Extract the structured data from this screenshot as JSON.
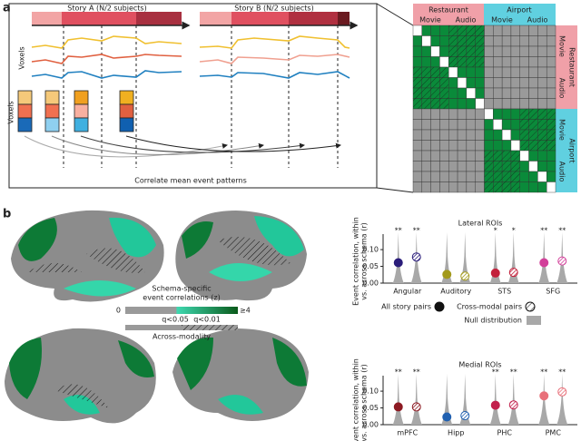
{
  "panel_a": {
    "label": "a",
    "story_a": "Story A (N/2 subjects)",
    "story_b": "Story B (N/2 subjects)",
    "voxels_1": "Voxels",
    "voxels_2": "Voxels",
    "caption": "Correlate mean event patterns"
  },
  "matrix": {
    "top_groups": [
      "Restaurant",
      "Airport"
    ],
    "top_modalities": [
      "Movie",
      "Audio",
      "Movie",
      "Audio"
    ],
    "side_groups": [
      "Restaurant",
      "Airport"
    ],
    "side_modalities": [
      "Movie",
      "Audio",
      "Movie",
      "Audio"
    ]
  },
  "panel_b": {
    "label": "b",
    "colorbar_title": [
      "Schema-specific",
      "event correlations (z)"
    ],
    "colorbar_min": "0",
    "colorbar_max": "≥4",
    "q_low": "q<0.05",
    "q_high": "q<0.01",
    "hatch_label": "Across-modality"
  },
  "chart_data": [
    {
      "type": "dot",
      "title": "Lateral ROIs",
      "ylabel": [
        "Event correlation, within",
        "vs. across schema (r)"
      ],
      "categories": [
        "Angular",
        "Auditory",
        "STS",
        "SFG"
      ],
      "colors": [
        "#2b1d7a",
        "#a39a1c",
        "#c3213c",
        "#d2409a"
      ],
      "series": [
        {
          "name": "All story pairs",
          "hatch": false,
          "values": [
            0.061,
            0.026,
            0.03,
            0.061
          ],
          "significance": [
            "**",
            null,
            "*",
            "**"
          ]
        },
        {
          "name": "Cross-modal pairs",
          "hatch": true,
          "values": [
            0.078,
            0.021,
            0.032,
            0.066
          ],
          "significance": [
            "**",
            null,
            "*",
            "**"
          ]
        }
      ],
      "null_label": "Null distribution",
      "legend": true,
      "ylim": [
        0,
        0.13
      ],
      "yticks": [
        {
          "value": 0,
          "label": "0.00"
        },
        {
          "value": 0.05,
          "label": "0.05"
        },
        {
          "value": 0.1,
          "label": "0.10"
        }
      ]
    },
    {
      "type": "dot",
      "title": "Medial ROIs",
      "ylabel": [
        "Event correlation, within",
        "vs. across schema (r)"
      ],
      "categories": [
        "mPFC",
        "Hipp",
        "PHC",
        "PMC"
      ],
      "colors": [
        "#8c1a22",
        "#2060b0",
        "#c2204c",
        "#e8707a"
      ],
      "series": [
        {
          "hatch": false,
          "values": [
            0.053,
            0.023,
            0.058,
            0.086
          ],
          "significance": [
            "**",
            null,
            "**",
            "**"
          ]
        },
        {
          "hatch": true,
          "values": [
            0.053,
            0.027,
            0.059,
            0.098
          ],
          "significance": [
            "**",
            null,
            "**",
            "**"
          ]
        }
      ],
      "legend": false,
      "ylim": [
        0,
        0.13
      ],
      "yticks": [
        {
          "value": 0,
          "label": "0.00"
        },
        {
          "value": 0.05,
          "label": "0.05"
        },
        {
          "value": 0.1,
          "label": "0.10"
        }
      ]
    }
  ]
}
